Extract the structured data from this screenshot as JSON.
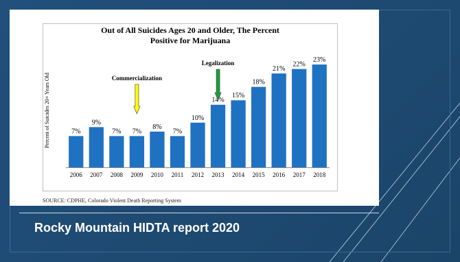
{
  "slide": {
    "title": "Rocky Mountain HIDTA report 2020",
    "source": "SOURCE:   CDPHE, Colorado Violent Death Reporting System"
  },
  "chart_data": {
    "type": "bar",
    "title_lines": [
      "Out of All Suicides Ages 20 and Older, The Percent",
      "Positive for Marijuana"
    ],
    "ylabel": "Percent of Suicides 20+ Years Old",
    "xlabel": "",
    "categories": [
      "2006",
      "2007",
      "2008",
      "2009",
      "2010",
      "2011",
      "2012",
      "2013",
      "2014",
      "2015",
      "2016",
      "2017",
      "2018"
    ],
    "values": [
      7,
      9,
      7,
      7,
      8,
      7,
      10,
      14,
      15,
      18,
      21,
      22,
      23
    ],
    "value_labels": [
      "7%",
      "9%",
      "7%",
      "7%",
      "8%",
      "7%",
      "10%",
      "14%",
      "15%",
      "18%",
      "21%",
      "22%",
      "23%"
    ],
    "ylim": [
      0,
      27
    ],
    "grid": false,
    "bar_color": "#1f72c2",
    "annotations": [
      {
        "text": "Commercialization",
        "category": "2009",
        "arrow_color": "#ffff00"
      },
      {
        "text": "Legalization",
        "category": "2013",
        "arrow_color": "#1e9e3e"
      }
    ]
  }
}
